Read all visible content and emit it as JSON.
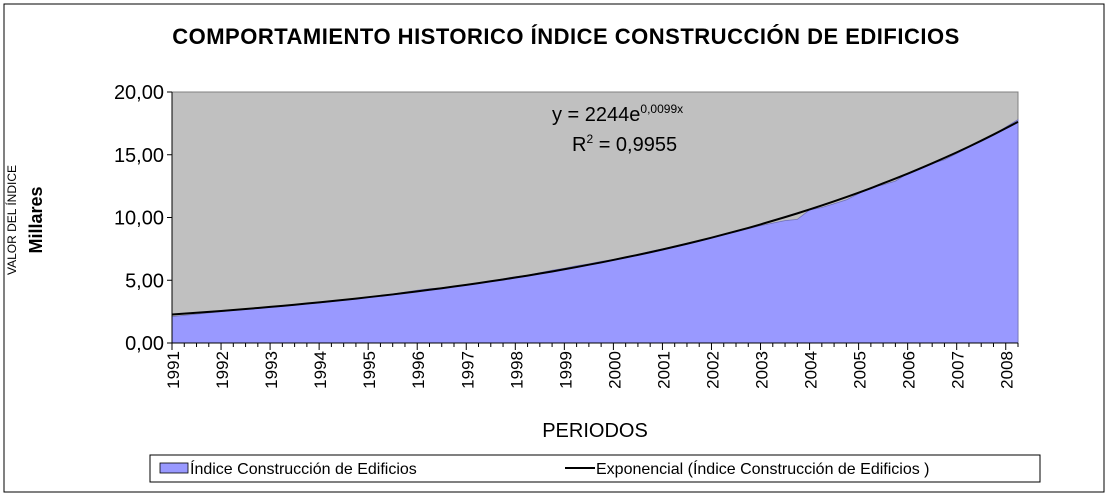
{
  "chart_data": {
    "type": "area",
    "title": "COMPORTAMIENTO HISTORICO ÍNDICE CONSTRUCCIÓN DE EDIFICIOS",
    "ylabel": "VALOR DEL ÍNDICE",
    "yunit_label": "Millares",
    "xlabel": "PERIODOS",
    "equation": {
      "base": "y = 2244e",
      "exponent": "0,0099x"
    },
    "r_squared": {
      "base": "R",
      "exponent": "2",
      "rest": " = 0,9955"
    },
    "categories": [
      "1991",
      null,
      null,
      null,
      "1992",
      null,
      null,
      null,
      "1993",
      null,
      null,
      null,
      "1994",
      null,
      null,
      null,
      "1995",
      null,
      null,
      null,
      "1996",
      null,
      null,
      null,
      "1997",
      null,
      null,
      null,
      "1998",
      null,
      null,
      null,
      "1999",
      null,
      null,
      null,
      "2000",
      null,
      null,
      null,
      "2001",
      null,
      null,
      null,
      "2002",
      null,
      null,
      null,
      "2003",
      null,
      null,
      null,
      "2004",
      null,
      null,
      null,
      "2005",
      null,
      null,
      null,
      "2006",
      null,
      null,
      null,
      "2007",
      null,
      null,
      null,
      "2008",
      null
    ],
    "series": [
      {
        "name": "Índice Construcción de Edificios",
        "color": "#9999ff",
        "values": [
          2.1,
          2.2,
          2.3,
          2.4,
          2.5,
          2.6,
          2.68,
          2.76,
          2.85,
          2.93,
          3.02,
          3.12,
          3.2,
          3.3,
          3.42,
          3.55,
          3.66,
          3.78,
          3.9,
          4.05,
          4.2,
          4.32,
          4.4,
          4.52,
          4.62,
          4.75,
          4.92,
          5.12,
          5.28,
          5.4,
          5.6,
          5.8,
          5.95,
          6.15,
          6.3,
          6.5,
          6.65,
          6.85,
          7.05,
          7.3,
          7.5,
          7.7,
          7.95,
          8.15,
          8.4,
          8.62,
          8.85,
          9.1,
          9.35,
          9.55,
          9.75,
          9.85,
          10.6,
          10.8,
          11.1,
          11.4,
          11.9,
          12.4,
          12.6,
          12.9,
          13.5,
          13.95,
          14.3,
          14.6,
          15.1,
          15.6,
          16.1,
          16.6,
          17.2,
          17.8
        ]
      },
      {
        "name": "Exponencial (Índice Construcción de Edificios )",
        "color": "#000000",
        "kind": "line",
        "values": [
          2.27,
          2.34,
          2.41,
          2.48,
          2.55,
          2.63,
          2.71,
          2.79,
          2.88,
          2.96,
          3.05,
          3.15,
          3.24,
          3.34,
          3.44,
          3.54,
          3.65,
          3.76,
          3.87,
          3.99,
          4.11,
          4.24,
          4.36,
          4.5,
          4.63,
          4.77,
          4.92,
          5.06,
          5.22,
          5.37,
          5.54,
          5.7,
          5.88,
          6.05,
          6.24,
          6.42,
          6.62,
          6.82,
          7.02,
          7.23,
          7.45,
          7.68,
          7.91,
          8.15,
          8.39,
          8.65,
          8.91,
          9.17,
          9.45,
          9.74,
          10.03,
          10.33,
          10.64,
          10.96,
          11.29,
          11.63,
          11.98,
          12.34,
          12.72,
          13.1,
          13.49,
          13.9,
          14.32,
          14.75,
          15.19,
          15.65,
          16.12,
          16.61,
          17.11,
          17.62
        ]
      }
    ],
    "ylim": [
      0,
      20
    ],
    "yticks": [
      {
        "value": 0,
        "label": "0,00"
      },
      {
        "value": 5,
        "label": "5,00"
      },
      {
        "value": 10,
        "label": "10,00"
      },
      {
        "value": 15,
        "label": "15,00"
      },
      {
        "value": 20,
        "label": "20,00"
      }
    ],
    "plot_background": "#c0c0c0",
    "grid": false
  }
}
